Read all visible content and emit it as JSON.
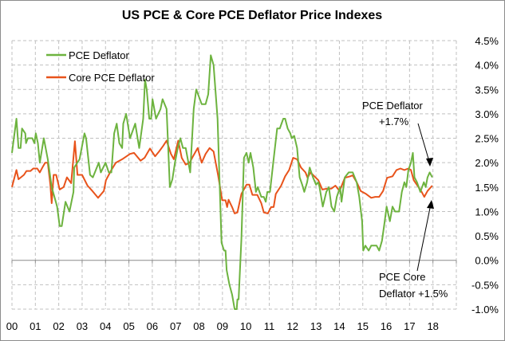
{
  "chart_data": {
    "type": "line",
    "title": "US PCE & Core PCE Deflator Price Indexes",
    "xlabel": "",
    "ylabel": "",
    "xlim": [
      0,
      19
    ],
    "ylim": [
      -1.0,
      4.5
    ],
    "grid": true,
    "legend_position": "top-left",
    "x_tick_labels": [
      "00",
      "01",
      "02",
      "03",
      "04",
      "05",
      "06",
      "07",
      "08",
      "09",
      "10",
      "11",
      "12",
      "13",
      "14",
      "15",
      "16",
      "17",
      "18"
    ],
    "y_tick_labels": [
      "4.5%",
      "4.0%",
      "3.5%",
      "3.0%",
      "2.5%",
      "2.0%",
      "1.5%",
      "1.0%",
      "0.5%",
      "0.0%",
      "-0.5%",
      "-1.0%"
    ],
    "y_ticks": [
      4.5,
      4.0,
      3.5,
      3.0,
      2.5,
      2.0,
      1.5,
      1.0,
      0.5,
      0.0,
      -0.5,
      -1.0
    ],
    "series": [
      {
        "name": "PCE Deflator",
        "color": "#6db33f",
        "x": [
          0.0,
          0.19,
          0.28,
          0.37,
          0.43,
          0.57,
          0.6,
          0.68,
          0.87,
          0.96,
          1.02,
          1.11,
          1.19,
          1.36,
          1.53,
          1.7,
          1.93,
          2.04,
          2.13,
          2.29,
          2.46,
          2.63,
          2.66,
          2.89,
          3.1,
          3.17,
          3.34,
          3.46,
          3.71,
          3.8,
          4.0,
          4.14,
          4.25,
          4.37,
          4.48,
          4.59,
          4.71,
          4.76,
          4.88,
          5.05,
          5.27,
          5.44,
          5.61,
          5.69,
          5.76,
          5.87,
          5.95,
          6.01,
          6.16,
          6.35,
          6.44,
          6.61,
          6.75,
          6.86,
          6.97,
          7.09,
          7.2,
          7.31,
          7.43,
          7.62,
          7.77,
          7.88,
          8.11,
          8.28,
          8.39,
          8.5,
          8.62,
          8.79,
          8.96,
          9.07,
          9.13,
          9.18,
          9.3,
          9.41,
          9.52,
          9.61,
          9.64,
          9.69,
          9.81,
          9.92,
          10.03,
          10.12,
          10.2,
          10.32,
          10.43,
          10.51,
          10.66,
          10.77,
          10.85,
          10.92,
          11.03,
          11.17,
          11.34,
          11.45,
          11.6,
          11.68,
          11.79,
          11.9,
          11.96,
          12.07,
          12.19,
          12.3,
          12.41,
          12.5,
          12.62,
          12.73,
          12.87,
          13.0,
          13.1,
          13.15,
          13.29,
          13.44,
          13.55,
          13.66,
          13.78,
          13.89,
          14.03,
          14.09,
          14.23,
          14.4,
          14.57,
          14.74,
          14.85,
          14.97,
          15.02,
          15.11,
          15.25,
          15.36,
          15.59,
          15.7,
          15.82,
          15.93,
          16.02,
          16.16,
          16.27,
          16.38,
          16.55,
          16.67,
          16.78,
          16.86,
          16.95,
          17.06,
          17.14,
          17.21,
          17.32,
          17.46,
          17.61,
          17.69,
          17.77,
          17.86,
          17.97
        ],
        "values": [
          2.2,
          2.9,
          2.3,
          2.3,
          2.7,
          2.6,
          2.4,
          2.5,
          2.5,
          2.4,
          2.6,
          2.4,
          2.0,
          2.5,
          2.07,
          1.5,
          1.1,
          0.7,
          0.7,
          1.2,
          1.0,
          1.4,
          1.9,
          2.07,
          2.6,
          2.5,
          1.75,
          1.7,
          2.0,
          1.8,
          2.0,
          1.8,
          1.8,
          2.6,
          2.8,
          2.4,
          2.3,
          2.8,
          3.0,
          2.5,
          2.8,
          2.3,
          2.9,
          3.7,
          3.5,
          2.9,
          2.9,
          3.3,
          2.9,
          3.1,
          3.3,
          3.1,
          1.5,
          1.66,
          2.0,
          2.3,
          2.5,
          2.3,
          2.3,
          1.8,
          3.1,
          3.5,
          3.2,
          3.2,
          3.4,
          4.2,
          4.0,
          2.9,
          0.36,
          0.2,
          0.2,
          -0.2,
          -0.5,
          -0.7,
          -1.0,
          -1.0,
          -0.8,
          -0.8,
          0.44,
          2.1,
          2.2,
          2.0,
          2.2,
          1.9,
          1.4,
          1.5,
          1.3,
          1.3,
          1.2,
          1.4,
          1.4,
          2.0,
          2.7,
          2.7,
          2.9,
          2.9,
          2.7,
          2.6,
          2.5,
          2.55,
          2.3,
          1.7,
          1.55,
          1.4,
          1.6,
          1.9,
          1.7,
          1.55,
          1.6,
          1.5,
          1.1,
          1.4,
          1.5,
          1.1,
          1.0,
          1.3,
          1.5,
          1.2,
          1.7,
          1.8,
          1.8,
          1.6,
          1.3,
          0.8,
          0.2,
          0.3,
          0.2,
          0.3,
          0.3,
          0.2,
          0.4,
          0.77,
          1.1,
          0.8,
          1.1,
          1.0,
          1.0,
          1.4,
          1.6,
          1.5,
          1.85,
          2.0,
          2.2,
          1.7,
          1.6,
          1.4,
          1.6,
          1.5,
          1.7,
          1.8,
          1.7
        ]
      },
      {
        "name": "Core PCE Deflator",
        "color": "#e8531b",
        "x": [
          0.0,
          0.19,
          0.28,
          0.51,
          0.62,
          0.79,
          0.91,
          1.08,
          1.19,
          1.3,
          1.42,
          1.53,
          1.64,
          1.7,
          1.78,
          1.89,
          2.04,
          2.21,
          2.35,
          2.53,
          2.69,
          2.8,
          3.0,
          3.23,
          3.44,
          3.68,
          3.93,
          4.02,
          4.25,
          4.44,
          4.71,
          5.05,
          5.22,
          5.5,
          5.67,
          5.9,
          6.12,
          6.29,
          6.46,
          6.61,
          6.8,
          6.92,
          7.11,
          7.26,
          7.43,
          7.6,
          7.74,
          7.94,
          8.11,
          8.28,
          8.45,
          8.62,
          8.81,
          8.99,
          9.13,
          9.2,
          9.26,
          9.41,
          9.52,
          9.64,
          9.81,
          10.03,
          10.15,
          10.28,
          10.49,
          10.66,
          10.77,
          10.94,
          11.08,
          11.19,
          11.28,
          11.51,
          11.68,
          11.85,
          12.02,
          12.19,
          12.36,
          12.55,
          12.64,
          12.76,
          12.93,
          13.1,
          13.27,
          13.49,
          13.66,
          13.83,
          14.01,
          14.23,
          14.46,
          14.57,
          14.74,
          14.91,
          15.14,
          15.36,
          15.53,
          15.7,
          15.87,
          16.04,
          16.27,
          16.44,
          16.61,
          16.78,
          16.95,
          17.06,
          17.18,
          17.38,
          17.52,
          17.63,
          17.77,
          17.97
        ],
        "values": [
          1.5,
          1.85,
          1.66,
          1.75,
          1.83,
          1.83,
          1.88,
          1.88,
          1.8,
          1.9,
          2.0,
          2.0,
          1.55,
          1.17,
          1.75,
          1.75,
          1.45,
          1.5,
          1.7,
          1.58,
          2.44,
          1.75,
          1.75,
          1.53,
          1.42,
          1.28,
          1.42,
          1.64,
          1.85,
          2.0,
          2.07,
          2.18,
          2.2,
          2.04,
          2.1,
          2.29,
          2.13,
          2.23,
          2.34,
          2.45,
          2.18,
          2.07,
          2.45,
          2.1,
          1.96,
          2.0,
          2.13,
          2.3,
          2.0,
          2.18,
          2.3,
          2.23,
          1.75,
          1.23,
          1.23,
          1.09,
          1.24,
          1.09,
          0.96,
          0.98,
          1.36,
          1.55,
          1.55,
          1.34,
          1.34,
          1.17,
          0.98,
          0.96,
          1.09,
          1.09,
          1.36,
          1.53,
          1.72,
          1.85,
          2.1,
          2.07,
          1.9,
          1.8,
          1.69,
          1.8,
          1.72,
          1.64,
          1.45,
          1.47,
          1.47,
          1.53,
          1.42,
          1.69,
          1.72,
          1.74,
          1.6,
          1.42,
          1.36,
          1.28,
          1.3,
          1.3,
          1.42,
          1.69,
          1.72,
          1.85,
          1.88,
          1.85,
          1.88,
          1.85,
          1.64,
          1.5,
          1.4,
          1.3,
          1.42,
          1.53
        ]
      }
    ],
    "annotations": [
      {
        "lines": [
          "PCE Deflator",
          "+1.7%"
        ],
        "points_to": {
          "x": 17.9,
          "y": 1.95
        }
      },
      {
        "lines": [
          "PCE Core",
          "Deflator +1.5%"
        ],
        "points_to": {
          "x": 17.95,
          "y": 1.35
        }
      }
    ]
  }
}
